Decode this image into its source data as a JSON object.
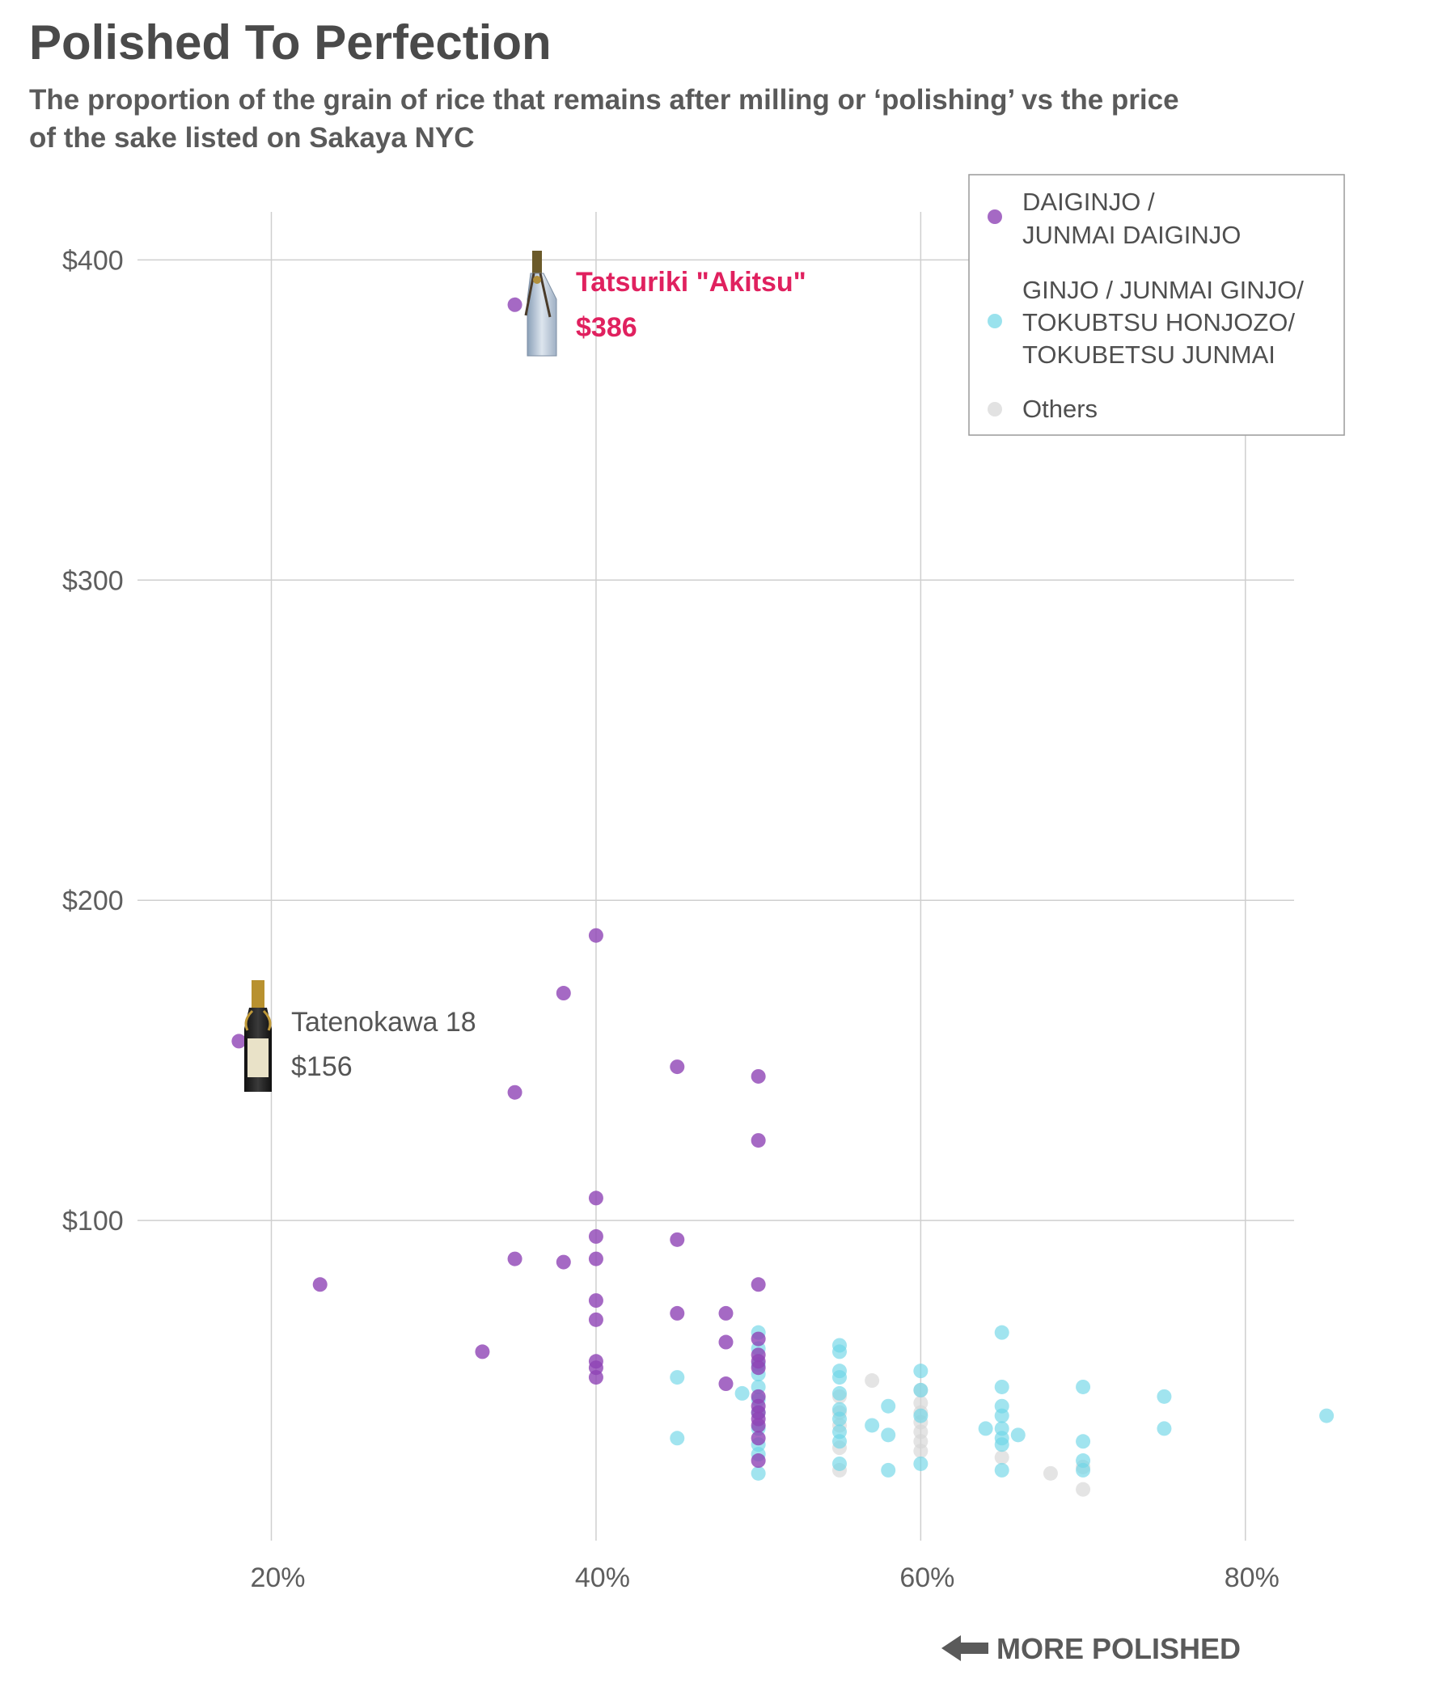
{
  "chart_data": {
    "type": "scatter",
    "title": "Polished To Perfection",
    "subtitle": "The proportion of the grain of rice that remains after milling or ‘polishing’ vs the price of the sake listed on Sakaya NYC",
    "xlabel": "",
    "ylabel": "",
    "xlim": [
      13,
      83
    ],
    "ylim": [
      0,
      415
    ],
    "x_ticks": [
      20,
      40,
      60,
      80
    ],
    "x_tick_labels": [
      "20%",
      "40%",
      "60%",
      "80%"
    ],
    "y_ticks": [
      100,
      200,
      300,
      400
    ],
    "y_tick_labels": [
      "$100",
      "$200",
      "$300",
      "$400"
    ],
    "grid": true,
    "legend_placement": "top-right",
    "series": [
      {
        "name": "DAIGINJO / JUNMAI DAIGINJO",
        "legend_lines": [
          "DAIGINJO /",
          "JUNMAI DAIGINJO"
        ],
        "color": "#8e44b5",
        "points": [
          [
            35,
            386
          ],
          [
            40,
            189
          ],
          [
            38,
            171
          ],
          [
            18,
            156
          ],
          [
            35,
            140
          ],
          [
            45,
            148
          ],
          [
            50,
            145
          ],
          [
            50,
            125
          ],
          [
            40,
            107
          ],
          [
            40,
            95
          ],
          [
            45,
            94
          ],
          [
            35,
            88
          ],
          [
            38,
            87
          ],
          [
            40,
            88
          ],
          [
            23,
            80
          ],
          [
            50,
            80
          ],
          [
            40,
            75
          ],
          [
            40,
            69
          ],
          [
            45,
            71
          ],
          [
            48,
            71
          ],
          [
            48,
            62
          ],
          [
            50,
            63
          ],
          [
            33,
            59
          ],
          [
            40,
            56
          ],
          [
            40,
            54
          ],
          [
            40,
            51
          ],
          [
            48,
            49
          ],
          [
            50,
            58
          ],
          [
            50,
            56
          ],
          [
            50,
            54
          ],
          [
            50,
            45
          ],
          [
            50,
            42
          ],
          [
            50,
            40
          ],
          [
            50,
            38
          ],
          [
            50,
            36
          ],
          [
            50,
            32
          ],
          [
            50,
            25
          ]
        ]
      },
      {
        "name": "GINJO / JUNMAI GINJO/ TOKUBTSU HONJOZO/ TOKUBETSU JUNMAI",
        "legend_lines": [
          "GINJO / JUNMAI GINJO/",
          "TOKUBTSU HONJOZO/",
          "TOKUBETSU JUNMAI"
        ],
        "color": "#6fd6e6",
        "points": [
          [
            45,
            51
          ],
          [
            45,
            32
          ],
          [
            49,
            46
          ],
          [
            50,
            65
          ],
          [
            50,
            60
          ],
          [
            50,
            55
          ],
          [
            50,
            52
          ],
          [
            50,
            48
          ],
          [
            50,
            44
          ],
          [
            50,
            40
          ],
          [
            50,
            35
          ],
          [
            50,
            30
          ],
          [
            50,
            27
          ],
          [
            50,
            21
          ],
          [
            55,
            61
          ],
          [
            55,
            59
          ],
          [
            55,
            53
          ],
          [
            55,
            51
          ],
          [
            55,
            46
          ],
          [
            55,
            41
          ],
          [
            55,
            38
          ],
          [
            55,
            34
          ],
          [
            55,
            31
          ],
          [
            55,
            24
          ],
          [
            57,
            36
          ],
          [
            58,
            42
          ],
          [
            58,
            33
          ],
          [
            58,
            22
          ],
          [
            60,
            53
          ],
          [
            60,
            47
          ],
          [
            60,
            39
          ],
          [
            60,
            24
          ],
          [
            64,
            35
          ],
          [
            65,
            65
          ],
          [
            65,
            48
          ],
          [
            65,
            42
          ],
          [
            65,
            39
          ],
          [
            65,
            35
          ],
          [
            65,
            32
          ],
          [
            65,
            30
          ],
          [
            65,
            22
          ],
          [
            66,
            33
          ],
          [
            70,
            48
          ],
          [
            70,
            31
          ],
          [
            70,
            25
          ],
          [
            70,
            22
          ],
          [
            75,
            45
          ],
          [
            75,
            35
          ],
          [
            85,
            39
          ]
        ]
      },
      {
        "name": "Others",
        "legend_lines": [
          "Others"
        ],
        "color": "#d6d6d6",
        "points": [
          [
            55,
            45
          ],
          [
            55,
            40
          ],
          [
            55,
            36
          ],
          [
            55,
            29
          ],
          [
            55,
            22
          ],
          [
            57,
            50
          ],
          [
            60,
            47
          ],
          [
            60,
            43
          ],
          [
            60,
            40
          ],
          [
            60,
            37
          ],
          [
            60,
            34
          ],
          [
            60,
            31
          ],
          [
            60,
            28
          ],
          [
            65,
            26
          ],
          [
            68,
            21
          ],
          [
            70,
            23
          ],
          [
            70,
            16
          ]
        ]
      }
    ],
    "annotations": [
      {
        "name": "Tatsuriki \"Akitsu\"",
        "value": "$386",
        "x": 35,
        "y": 386,
        "color": "#e0215f",
        "bold": true,
        "bottle_icon": "bottle-wrapped-icon"
      },
      {
        "name": "Tatenokawa 18",
        "value": "$156",
        "x": 18,
        "y": 156,
        "color": "#555555",
        "bold": false,
        "bottle_icon": "bottle-dark-icon"
      }
    ],
    "direction_note": "MORE POLISHED",
    "direction_icon": "arrow-left-icon"
  }
}
